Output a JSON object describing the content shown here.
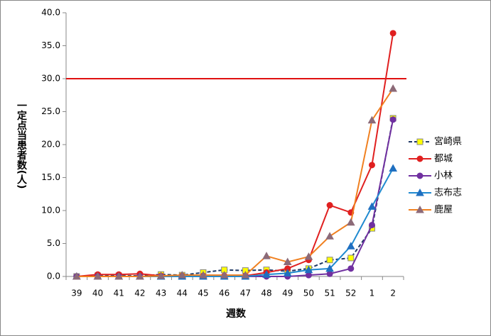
{
  "chart_data": {
    "type": "line",
    "x_label": "週数",
    "y_label": "一定点当患者数(人)",
    "categories": [
      "39",
      "40",
      "41",
      "42",
      "43",
      "44",
      "45",
      "46",
      "47",
      "48",
      "49",
      "50",
      "51",
      "52",
      "1",
      "2"
    ],
    "ylim": [
      0,
      40
    ],
    "yticks": [
      {
        "value": 0,
        "label": "0.0"
      },
      {
        "value": 5,
        "label": "5.0"
      },
      {
        "value": 10,
        "label": "10.0"
      },
      {
        "value": 15,
        "label": "15.0"
      },
      {
        "value": 20,
        "label": "20.0"
      },
      {
        "value": 25,
        "label": "25.0"
      },
      {
        "value": 30,
        "label": "30.0"
      },
      {
        "value": 35,
        "label": "35.0"
      },
      {
        "value": 40,
        "label": "40.0"
      }
    ],
    "grid": false,
    "legend": "right",
    "reference_line": {
      "value": 30,
      "color": "#e01010"
    },
    "series": [
      {
        "name": "宮崎県",
        "color": "#1f3864",
        "dash": true,
        "marker": "square",
        "marker_color": "#ffff00",
        "values": [
          0,
          0.1,
          0.1,
          0.1,
          0.3,
          0.2,
          0.6,
          1.0,
          0.9,
          1.0,
          0.8,
          1.2,
          2.5,
          2.8,
          7.3,
          24.0
        ]
      },
      {
        "name": "都城",
        "color": "#e02020",
        "dash": false,
        "marker": "circle",
        "marker_color": "#e02020",
        "values": [
          0,
          0.3,
          0.3,
          0.4,
          0.1,
          0.1,
          0.1,
          0.1,
          0.1,
          0.6,
          1.2,
          2.5,
          10.8,
          9.7,
          16.9,
          36.9
        ]
      },
      {
        "name": "小林",
        "color": "#7030a0",
        "dash": false,
        "marker": "circle",
        "marker_color": "#7030a0",
        "values": [
          0,
          0,
          0,
          0,
          0,
          0,
          0,
          0,
          0,
          0,
          0,
          0.2,
          0.4,
          1.2,
          7.8,
          23.8
        ]
      },
      {
        "name": "志布志",
        "color": "#1f8ad0",
        "dash": false,
        "marker": "triangle",
        "marker_color": "#1f6fc0",
        "values": [
          0,
          0,
          0,
          0,
          0,
          0,
          0,
          0,
          0,
          0.3,
          0.5,
          1.0,
          1.2,
          4.6,
          10.6,
          16.4
        ]
      },
      {
        "name": "鹿屋",
        "color": "#f08020",
        "dash": false,
        "marker": "triangle",
        "marker_color": "#8c6a78",
        "values": [
          0,
          0,
          0,
          0,
          0.1,
          0.2,
          0.2,
          0.2,
          0.2,
          3.1,
          2.2,
          3.0,
          6.1,
          8.2,
          23.7,
          28.5
        ]
      }
    ]
  }
}
